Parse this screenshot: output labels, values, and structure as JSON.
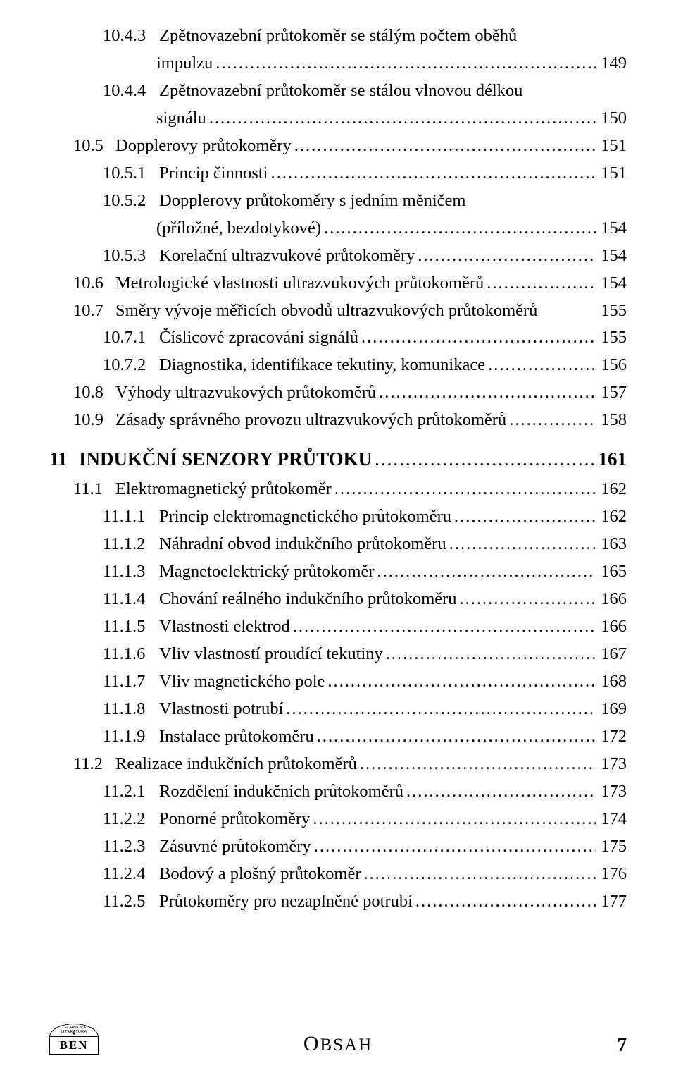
{
  "font_family": "Times New Roman",
  "body_fontsize_pt": 18,
  "chapter_fontsize_pt": 20,
  "text_color": "#000000",
  "background_color": "#ffffff",
  "leader_char": ".",
  "entries": [
    {
      "level": "l3a",
      "num": "10.4.3",
      "label_lines": [
        "Zpětnovazební průtokoměr se stálým počtem oběhů",
        "impulzu"
      ],
      "page": "149"
    },
    {
      "level": "l3a",
      "num": "10.4.4",
      "label_lines": [
        "Zpětnovazební průtokoměr se stálou vlnovou délkou",
        "signálu"
      ],
      "page": "150"
    },
    {
      "level": "l2",
      "num": "10.5",
      "label_lines": [
        "Dopplerovy průtokoměry"
      ],
      "page": "151"
    },
    {
      "level": "l3",
      "num": "10.5.1",
      "label_lines": [
        "Princip činnosti"
      ],
      "page": "151"
    },
    {
      "level": "l3",
      "num": "10.5.2",
      "label_lines": [
        "Dopplerovy průtokoměry s jedním měničem",
        "(příložné, bezdotykové)"
      ],
      "page": "154"
    },
    {
      "level": "l3",
      "num": "10.5.3",
      "label_lines": [
        "Korelační ultrazvukové průtokoměry"
      ],
      "page": "154"
    },
    {
      "level": "l2",
      "num": "10.6",
      "label_lines": [
        "Metrologické vlastnosti ultrazvukových průtokoměrů"
      ],
      "page": "154"
    },
    {
      "level": "l2",
      "num": "10.7",
      "label_lines": [
        "Směry vývoje měřicích obvodů ultrazvukových průtokoměrů"
      ],
      "page": "155",
      "tight": true
    },
    {
      "level": "l3",
      "num": "10.7.1",
      "label_lines": [
        "Číslicové zpracování signálů"
      ],
      "page": "155"
    },
    {
      "level": "l3",
      "num": "10.7.2",
      "label_lines": [
        "Diagnostika, identifikace tekutiny, komunikace"
      ],
      "page": "156"
    },
    {
      "level": "l2",
      "num": "10.8",
      "label_lines": [
        "Výhody ultrazvukových průtokoměrů"
      ],
      "page": "157"
    },
    {
      "level": "l2",
      "num": "10.9",
      "label_lines": [
        "Zásady správného provozu ultrazvukových průtokoměrů"
      ],
      "page": "158"
    }
  ],
  "chapter": {
    "num": "11",
    "label": "INDUKČNÍ SENZORY PRŮTOKU",
    "page": "161"
  },
  "entries2": [
    {
      "level": "l2",
      "num": "11.1",
      "label_lines": [
        "Elektromagnetický průtokoměr"
      ],
      "page": "162"
    },
    {
      "level": "l3",
      "num": "11.1.1",
      "label_lines": [
        "Princip elektromagnetického průtokoměru"
      ],
      "page": "162"
    },
    {
      "level": "l3",
      "num": "11.1.2",
      "label_lines": [
        "Náhradní obvod indukčního průtokoměru"
      ],
      "page": "163"
    },
    {
      "level": "l3",
      "num": "11.1.3",
      "label_lines": [
        "Magnetoelektrický průtokoměr"
      ],
      "page": "165"
    },
    {
      "level": "l3",
      "num": "11.1.4",
      "label_lines": [
        "Chování reálného indukčního průtokoměru"
      ],
      "page": "166"
    },
    {
      "level": "l3",
      "num": "11.1.5",
      "label_lines": [
        "Vlastnosti elektrod"
      ],
      "page": "166"
    },
    {
      "level": "l3",
      "num": "11.1.6",
      "label_lines": [
        "Vliv vlastností proudící tekutiny"
      ],
      "page": "167"
    },
    {
      "level": "l3",
      "num": "11.1.7",
      "label_lines": [
        "Vliv magnetického pole"
      ],
      "page": "168"
    },
    {
      "level": "l3",
      "num": "11.1.8",
      "label_lines": [
        "Vlastnosti potrubí"
      ],
      "page": "169"
    },
    {
      "level": "l3",
      "num": "11.1.9",
      "label_lines": [
        "Instalace průtokoměru"
      ],
      "page": "172"
    },
    {
      "level": "l2",
      "num": "11.2",
      "label_lines": [
        "Realizace indukčních průtokoměrů"
      ],
      "page": "173"
    },
    {
      "level": "l3",
      "num": "11.2.1",
      "label_lines": [
        "Rozdělení indukčních průtokoměrů"
      ],
      "page": "173"
    },
    {
      "level": "l3",
      "num": "11.2.2",
      "label_lines": [
        "Ponorné průtokoměry"
      ],
      "page": "174"
    },
    {
      "level": "l3",
      "num": "11.2.3",
      "label_lines": [
        "Zásuvné průtokoměry"
      ],
      "page": "175"
    },
    {
      "level": "l3",
      "num": "11.2.4",
      "label_lines": [
        "Bodový a plošný průtokoměr"
      ],
      "page": "176"
    },
    {
      "level": "l3",
      "num": "11.2.5",
      "label_lines": [
        "Průtokoměry pro nezaplněné potrubí"
      ],
      "page": "177"
    }
  ],
  "footer": {
    "section_label": "Obsah",
    "page_number": "7",
    "logo": {
      "top_text": "TECHNICKÁ LITERATURA",
      "brand": "BEN"
    }
  }
}
